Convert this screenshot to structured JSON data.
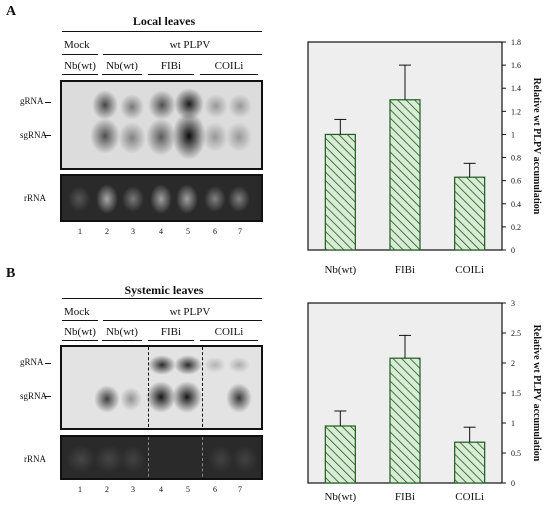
{
  "panel_a": {
    "letter": "A",
    "title": "Local leaves",
    "mock_label": "Mock",
    "group_label": "wt PLPV",
    "samples": [
      "Nb(wt)",
      "Nb(wt)",
      "FIBi",
      "COILi"
    ],
    "row_labels": [
      "gRNA",
      "sgRNA",
      "rRNA"
    ],
    "lanes": [
      "1",
      "2",
      "3",
      "4",
      "5",
      "6",
      "7"
    ]
  },
  "panel_b": {
    "letter": "B",
    "title": "Systemic leaves",
    "mock_label": "Mock",
    "group_label": "wt PLPV",
    "samples": [
      "Nb(wt)",
      "Nb(wt)",
      "FIBi",
      "COILi"
    ],
    "row_labels": [
      "gRNA",
      "sgRNA",
      "rRNA"
    ],
    "lanes": [
      "1",
      "2",
      "3",
      "4",
      "5",
      "6",
      "7"
    ]
  },
  "chart_data": [
    {
      "type": "bar",
      "categories": [
        "Nb(wt)",
        "FIBi",
        "COILi"
      ],
      "values": [
        1.0,
        1.3,
        0.63
      ],
      "errors": [
        0.13,
        0.3,
        0.12
      ],
      "ylabel": "Relative wt PLPV accumulation",
      "ylim": [
        0,
        1.8
      ],
      "yticks": [
        "0",
        "0.2",
        "0.4",
        "0.6",
        "0.8",
        "1",
        "1.2",
        "1.4",
        "1.6",
        "1.8"
      ],
      "axis_side": "right",
      "bar_fill": "#d9ecd5",
      "bar_stroke": "#1f5a1f",
      "plot_bg": "#eeeeee",
      "grid": false
    },
    {
      "type": "bar",
      "categories": [
        "Nb(wt)",
        "FIBi",
        "COILi"
      ],
      "values": [
        0.95,
        2.08,
        0.68
      ],
      "errors": [
        0.25,
        0.38,
        0.25
      ],
      "ylabel": "Relative wt PLPV accumulation",
      "ylim": [
        0,
        3
      ],
      "yticks": [
        "0",
        "0.5",
        "1",
        "1.5",
        "2",
        "2.5",
        "3"
      ],
      "axis_side": "right",
      "bar_fill": "#d9ecd5",
      "bar_stroke": "#1f5a1f",
      "plot_bg": "#eeeeee",
      "grid": false
    }
  ]
}
